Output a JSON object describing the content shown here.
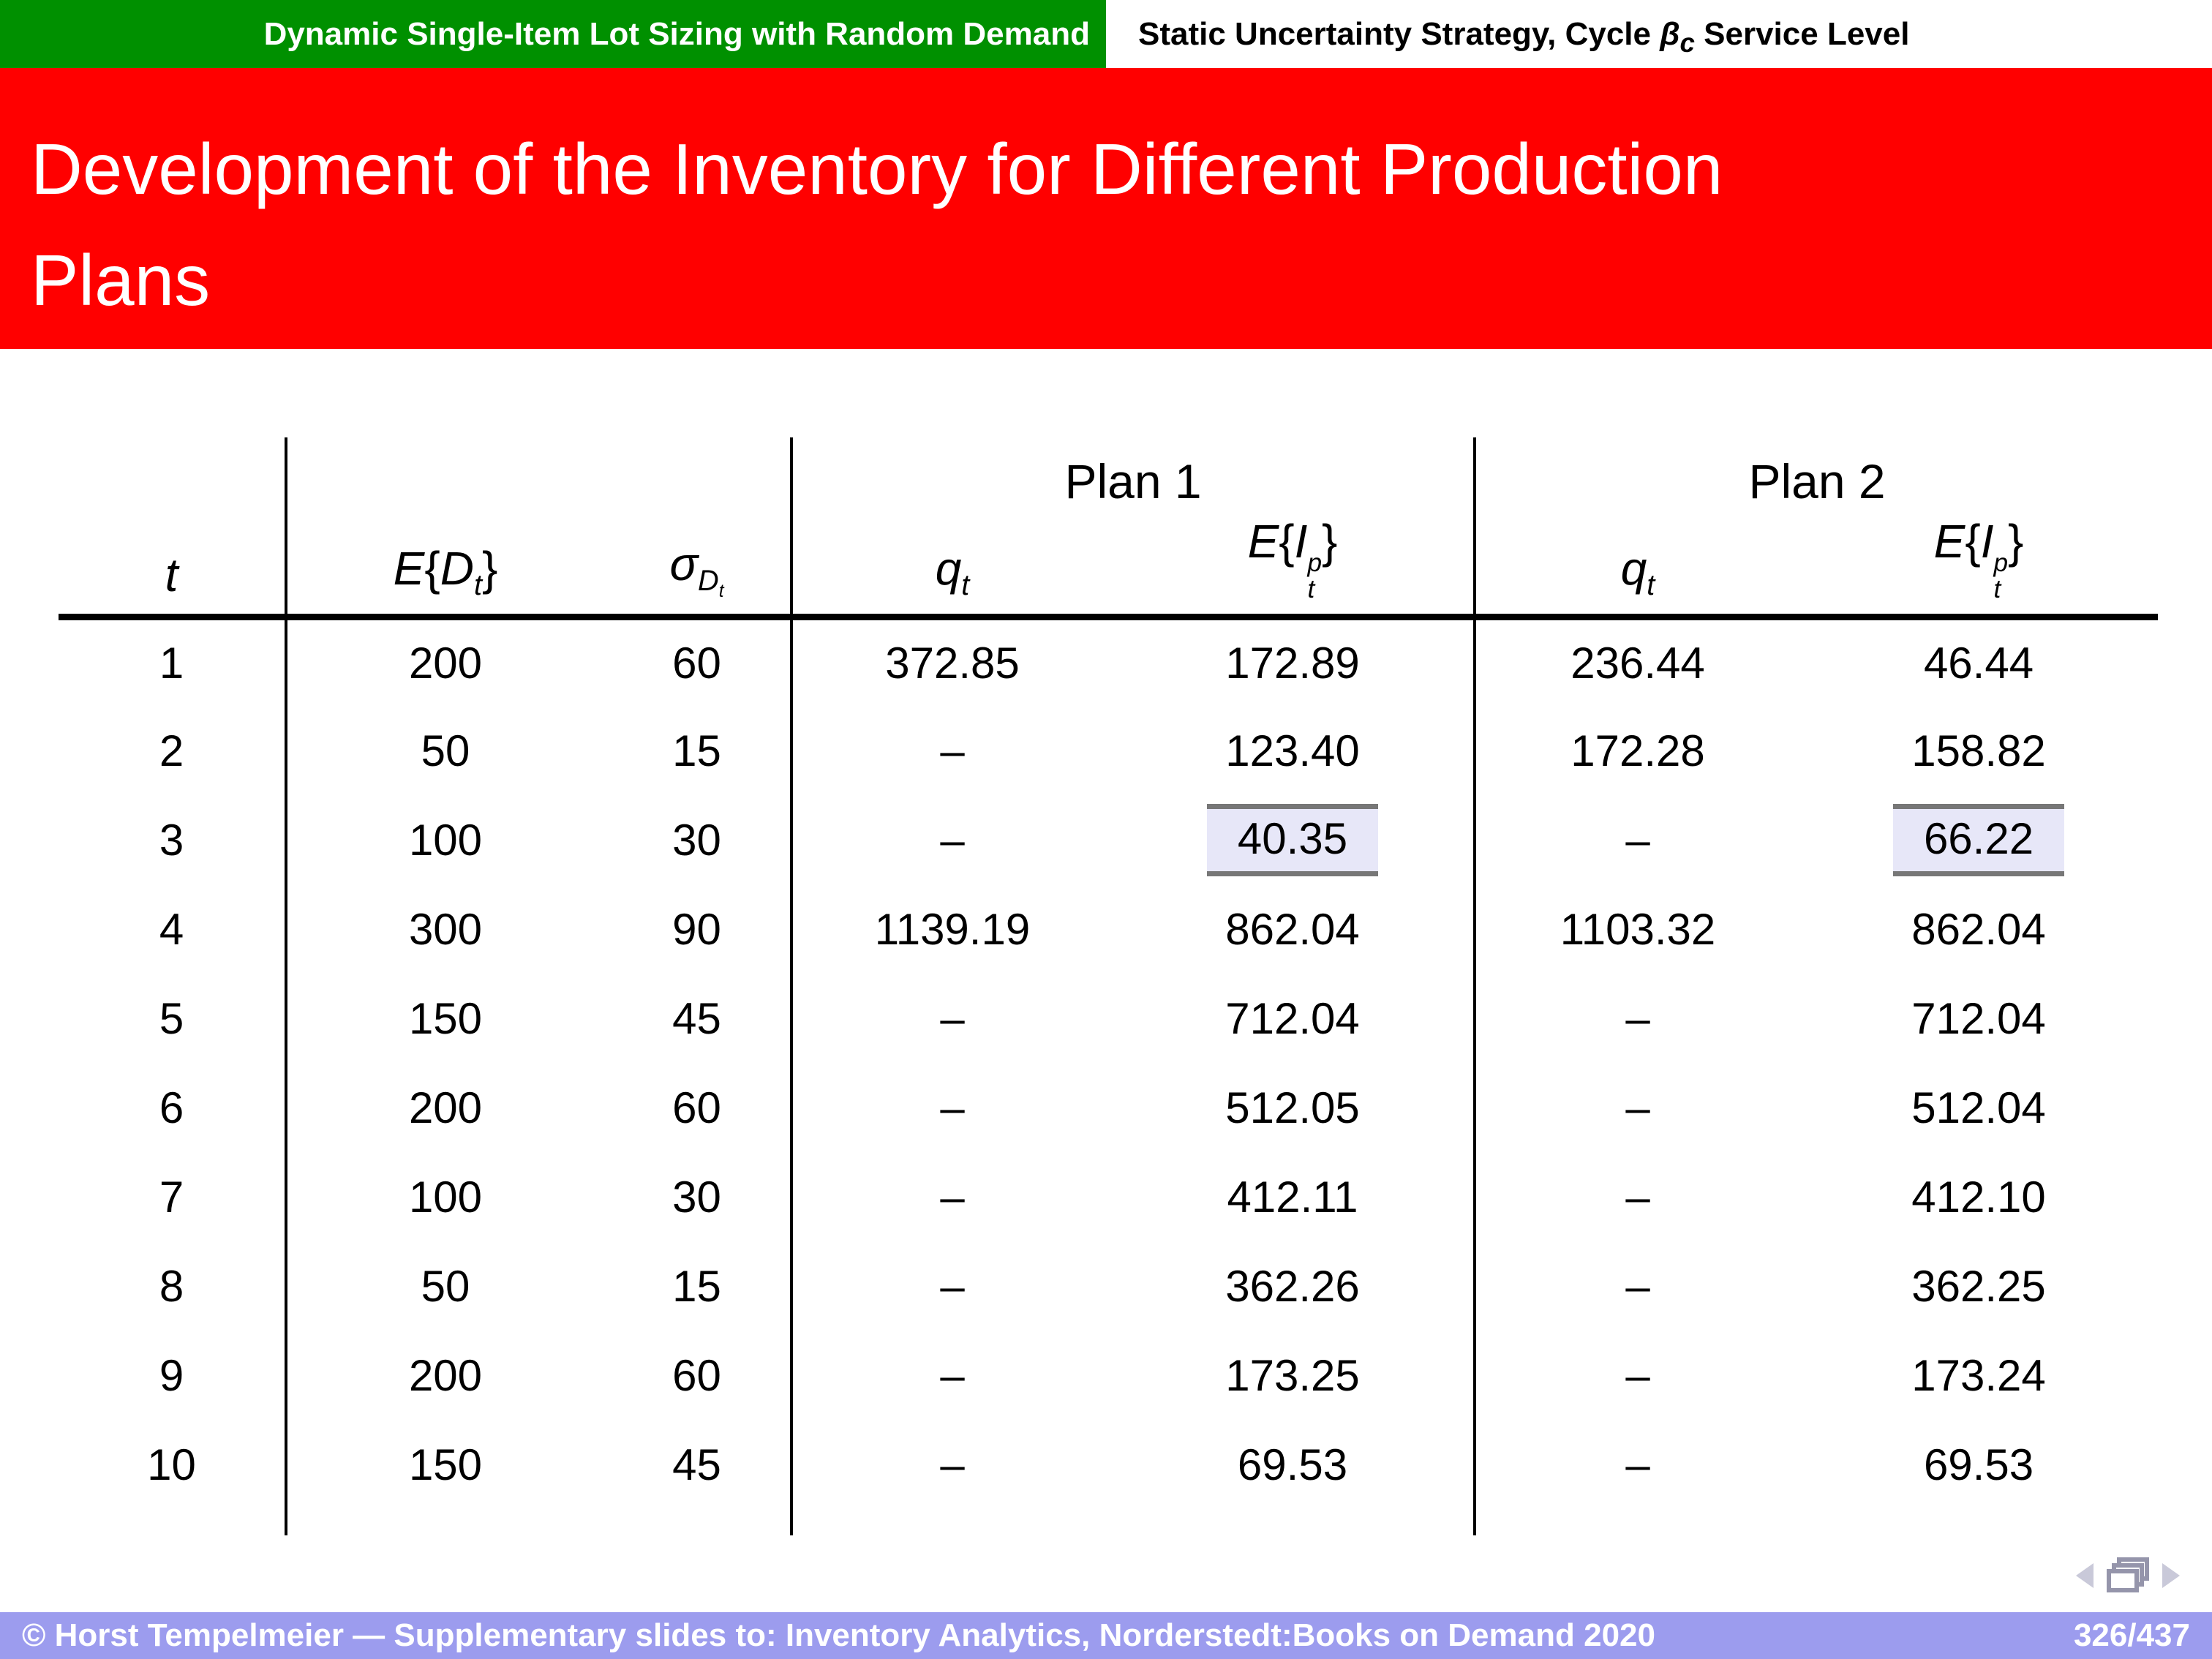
{
  "header": {
    "left_title": "Dynamic Single-Item Lot Sizing with Random Demand",
    "right_title_html": "Static Uncertainty Strategy, Cycle <i>&beta;<sub>c</sub></i> Service Level"
  },
  "title": {
    "line1": "Development of the Inventory for Different Production",
    "line2": "Plans"
  },
  "table": {
    "group_headers": [
      {
        "label": "Plan 1"
      },
      {
        "label": "Plan 2"
      }
    ],
    "col_headers_html": [
      "<i>t</i>",
      "<i>E</i>{<i>D<sub>t</sub></i>}",
      "<i>&sigma;<sub>D<sub>t</sub></sub></i>",
      "<i>q<sub>t</sub></i>",
      "<i>E</i>{<i>I</i><span class=\"ss\"><span>p</span><span>t</span></span>}",
      "<i>q<sub>t</sub></i>",
      "<i>E</i>{<i>I</i><span class=\"ss\"><span>p</span><span>t</span></span>}"
    ],
    "rows": [
      {
        "t": "1",
        "ed": "200",
        "sd": "60",
        "q1": "372.85",
        "i1": "172.89",
        "q2": "236.44",
        "i2": "46.44"
      },
      {
        "t": "2",
        "ed": "50",
        "sd": "15",
        "q1": "–",
        "i1": "123.40",
        "q2": "172.28",
        "i2": "158.82"
      },
      {
        "t": "3",
        "ed": "100",
        "sd": "30",
        "q1": "–",
        "i1": "40.35",
        "q2": "–",
        "i2": "66.22",
        "hl1": true,
        "hl2": true
      },
      {
        "t": "4",
        "ed": "300",
        "sd": "90",
        "q1": "1139.19",
        "i1": "862.04",
        "q2": "1103.32",
        "i2": "862.04"
      },
      {
        "t": "5",
        "ed": "150",
        "sd": "45",
        "q1": "–",
        "i1": "712.04",
        "q2": "–",
        "i2": "712.04"
      },
      {
        "t": "6",
        "ed": "200",
        "sd": "60",
        "q1": "–",
        "i1": "512.05",
        "q2": "–",
        "i2": "512.04"
      },
      {
        "t": "7",
        "ed": "100",
        "sd": "30",
        "q1": "–",
        "i1": "412.11",
        "q2": "–",
        "i2": "412.10"
      },
      {
        "t": "8",
        "ed": "50",
        "sd": "15",
        "q1": "–",
        "i1": "362.26",
        "q2": "–",
        "i2": "362.25"
      },
      {
        "t": "9",
        "ed": "200",
        "sd": "60",
        "q1": "–",
        "i1": "173.25",
        "q2": "–",
        "i2": "173.24"
      },
      {
        "t": "10",
        "ed": "150",
        "sd": "45",
        "q1": "–",
        "i1": "69.53",
        "q2": "–",
        "i2": "69.53"
      }
    ]
  },
  "footer": {
    "text": "© Horst Tempelmeier — Supplementary slides to: Inventory Analytics, Norderstedt:Books on Demand 2020",
    "page": "326/437"
  },
  "colors": {
    "green": "#009000",
    "red": "#ff0000",
    "footer": "#9c9cee",
    "highlight_bg": "#e7e7f8",
    "highlight_rule": "#777777",
    "nav_gray": "#c9c9d9",
    "nav_frame": "#9595ab"
  }
}
